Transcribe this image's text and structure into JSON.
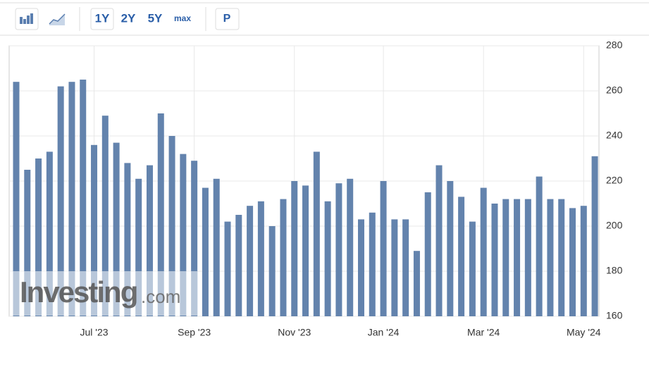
{
  "toolbar": {
    "ranges": [
      "1Y",
      "2Y",
      "5Y",
      "max"
    ],
    "price": "P"
  },
  "watermark": {
    "brand": "Investing",
    "suffix": ".com"
  },
  "chart_data": {
    "type": "bar",
    "categories": [
      null,
      null,
      null,
      null,
      null,
      null,
      null,
      "Jul '23",
      null,
      null,
      null,
      null,
      null,
      null,
      null,
      null,
      "Sep '23",
      null,
      null,
      null,
      null,
      null,
      null,
      null,
      null,
      "Nov '23",
      null,
      null,
      null,
      null,
      null,
      null,
      null,
      "Jan '24",
      null,
      null,
      null,
      null,
      null,
      null,
      null,
      null,
      "Mar '24",
      null,
      null,
      null,
      null,
      null,
      null,
      null,
      null,
      "May '24",
      null
    ],
    "values": [
      264,
      225,
      230,
      233,
      262,
      264,
      265,
      236,
      249,
      237,
      228,
      221,
      227,
      250,
      240,
      232,
      229,
      217,
      221,
      202,
      205,
      209,
      211,
      200,
      212,
      220,
      218,
      233,
      211,
      219,
      221,
      203,
      206,
      220,
      203,
      203,
      189,
      215,
      227,
      220,
      213,
      202,
      217,
      210,
      212,
      212,
      212,
      222,
      212,
      212,
      208,
      209,
      231
    ],
    "color": "#6383ad",
    "ylim": [
      160,
      280
    ],
    "yticks": [
      160,
      180,
      200,
      220,
      240,
      260,
      280
    ],
    "grid": true
  }
}
